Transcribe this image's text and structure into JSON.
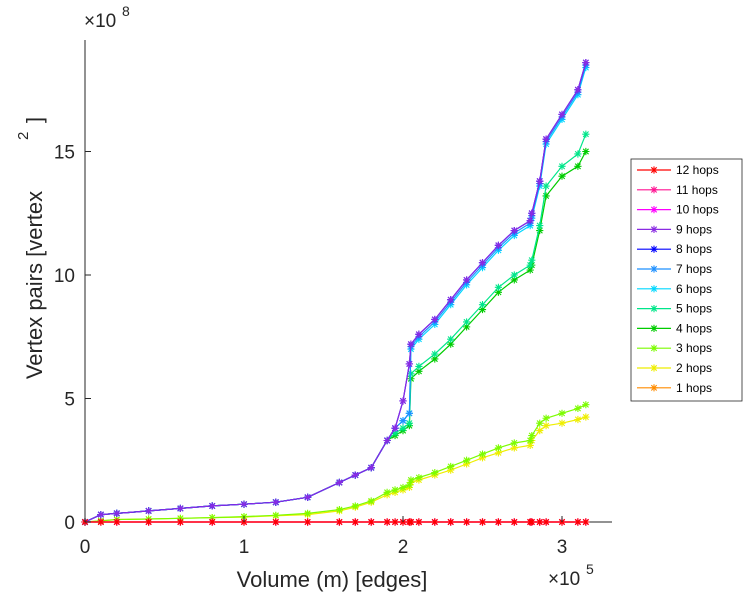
{
  "chart_data": {
    "type": "line",
    "title": "",
    "xlabel": "Volume (m) [edges]",
    "ylabel": "Vertex pairs [vertex",
    "ylabel_sup": "2",
    "ylabel_close": "]",
    "x_multiplier": "×10",
    "x_exponent": "5",
    "y_multiplier": "×10",
    "y_exponent": "8",
    "xlim": [
      0,
      3.3
    ],
    "ylim": [
      0,
      19.5
    ],
    "xticks": [
      0,
      1,
      2,
      3
    ],
    "xtick_labels": [
      "0",
      "1",
      "2",
      "3"
    ],
    "yticks": [
      0,
      5,
      10,
      15
    ],
    "ytick_labels": [
      "0",
      "5",
      "10",
      "15"
    ],
    "grid": false,
    "legend_position": "right",
    "x": [
      0,
      0.1,
      0.2,
      0.4,
      0.6,
      0.8,
      1.0,
      1.2,
      1.4,
      1.6,
      1.7,
      1.8,
      1.9,
      1.95,
      2.0,
      2.04,
      2.05,
      2.1,
      2.2,
      2.3,
      2.4,
      2.5,
      2.6,
      2.7,
      2.8,
      2.81,
      2.86,
      2.9,
      3.0,
      3.1,
      3.15
    ],
    "series": [
      {
        "name": "12 hops",
        "color": "#ff0000",
        "values": [
          0,
          0,
          0,
          0,
          0,
          0,
          0,
          0,
          0,
          0,
          0,
          0,
          0,
          0,
          0,
          0,
          0,
          0,
          0,
          0,
          0,
          0,
          0,
          0,
          0,
          0,
          0,
          0,
          0,
          0,
          0
        ]
      },
      {
        "name": "11 hops",
        "color": "#ff1493",
        "values": [
          0,
          0,
          0,
          0,
          0,
          0,
          0,
          0,
          0,
          0,
          0,
          0,
          0,
          0,
          0,
          0,
          0,
          0,
          0,
          0,
          0,
          0,
          0,
          0,
          0,
          0,
          0,
          0,
          0,
          0,
          0
        ]
      },
      {
        "name": "10 hops",
        "color": "#ff00ff",
        "values": [
          0,
          0,
          0,
          0,
          0,
          0,
          0,
          0,
          0,
          0,
          0,
          0,
          0,
          0,
          0,
          0,
          0,
          0,
          0,
          0,
          0,
          0,
          0,
          0,
          0,
          0,
          0,
          0,
          0,
          0,
          0
        ]
      },
      {
        "name": "9 hops",
        "color": "#8a2be2",
        "values": [
          0,
          0.3,
          0.35,
          0.45,
          0.55,
          0.65,
          0.72,
          0.8,
          1.0,
          1.6,
          1.9,
          2.2,
          3.3,
          3.8,
          4.9,
          6.4,
          7.2,
          7.6,
          8.2,
          9.0,
          9.8,
          10.5,
          11.2,
          11.8,
          12.2,
          12.5,
          13.8,
          15.5,
          16.5,
          17.5,
          18.6
        ]
      },
      {
        "name": "8 hops",
        "color": "#0000ff",
        "values": [
          0,
          0.3,
          0.35,
          0.45,
          0.55,
          0.65,
          0.72,
          0.8,
          1.0,
          1.6,
          1.9,
          2.2,
          3.3,
          3.8,
          4.9,
          6.4,
          7.2,
          7.6,
          8.2,
          9.0,
          9.8,
          10.5,
          11.2,
          11.8,
          12.2,
          12.5,
          13.8,
          15.5,
          16.5,
          17.5,
          18.6
        ]
      },
      {
        "name": "7 hops",
        "color": "#1e90ff",
        "values": [
          0,
          0.3,
          0.35,
          0.45,
          0.55,
          0.65,
          0.72,
          0.8,
          1.0,
          1.6,
          1.9,
          2.2,
          3.3,
          3.8,
          4.1,
          4.4,
          7.1,
          7.5,
          8.1,
          8.9,
          9.7,
          10.4,
          11.1,
          11.7,
          12.1,
          12.4,
          13.7,
          15.4,
          16.4,
          17.4,
          18.5
        ]
      },
      {
        "name": "6 hops",
        "color": "#00d8ff",
        "values": [
          0,
          0.3,
          0.35,
          0.45,
          0.55,
          0.65,
          0.72,
          0.8,
          1.0,
          1.6,
          1.9,
          2.2,
          3.3,
          3.8,
          4.1,
          4.4,
          7.0,
          7.4,
          8.0,
          8.8,
          9.6,
          10.3,
          11.0,
          11.6,
          12.0,
          12.3,
          13.6,
          15.3,
          16.3,
          17.3,
          18.4
        ]
      },
      {
        "name": "5 hops",
        "color": "#00e68a",
        "values": [
          0,
          0.3,
          0.35,
          0.45,
          0.55,
          0.65,
          0.72,
          0.8,
          1.0,
          1.6,
          1.9,
          2.2,
          3.3,
          3.6,
          3.8,
          4.0,
          6.0,
          6.3,
          6.8,
          7.4,
          8.1,
          8.8,
          9.5,
          10.0,
          10.4,
          10.6,
          12.0,
          13.6,
          14.4,
          14.9,
          15.7
        ]
      },
      {
        "name": "4 hops",
        "color": "#00cc00",
        "values": [
          0,
          0.3,
          0.35,
          0.45,
          0.55,
          0.65,
          0.72,
          0.8,
          1.0,
          1.6,
          1.9,
          2.2,
          3.3,
          3.5,
          3.7,
          3.9,
          5.8,
          6.1,
          6.6,
          7.2,
          7.9,
          8.6,
          9.3,
          9.8,
          10.2,
          10.4,
          11.8,
          13.2,
          14.0,
          14.4,
          15.0
        ]
      },
      {
        "name": "3 hops",
        "color": "#7cfc00",
        "values": [
          0,
          0.05,
          0.1,
          0.12,
          0.15,
          0.18,
          0.22,
          0.27,
          0.35,
          0.5,
          0.65,
          0.85,
          1.2,
          1.3,
          1.4,
          1.5,
          1.7,
          1.8,
          2.0,
          2.25,
          2.5,
          2.75,
          3.0,
          3.2,
          3.3,
          3.5,
          4.0,
          4.2,
          4.4,
          4.6,
          4.75
        ]
      },
      {
        "name": "2 hops",
        "color": "#eeee00",
        "values": [
          0,
          0.05,
          0.1,
          0.12,
          0.15,
          0.18,
          0.2,
          0.25,
          0.3,
          0.45,
          0.6,
          0.8,
          1.1,
          1.2,
          1.3,
          1.4,
          1.6,
          1.7,
          1.9,
          2.1,
          2.35,
          2.6,
          2.8,
          3.0,
          3.1,
          3.3,
          3.7,
          3.9,
          4.0,
          4.15,
          4.25
        ]
      },
      {
        "name": "1 hops",
        "color": "#ff8c00",
        "values": [
          0,
          0,
          0,
          0,
          0,
          0,
          0,
          0,
          0,
          0,
          0,
          0,
          0,
          0,
          0,
          0,
          0,
          0,
          0,
          0,
          0,
          0,
          0,
          0,
          0,
          0,
          0,
          0,
          0,
          0,
          0
        ]
      }
    ]
  }
}
